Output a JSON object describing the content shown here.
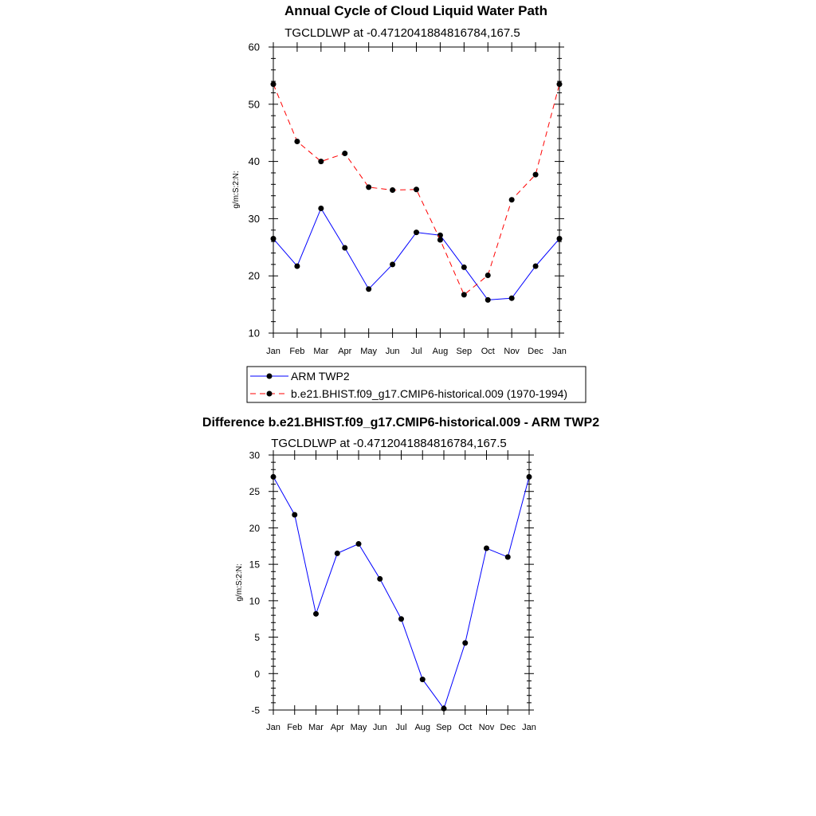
{
  "chart_data": [
    {
      "type": "line",
      "title": "Annual Cycle of Cloud Liquid Water Path",
      "subtitle": "TGCLDLWP at -0.4712041884816784,167.5",
      "xlabel": "",
      "ylabel": "g/m:S:2:N:",
      "ylim": [
        10,
        60
      ],
      "yticks": [
        "10",
        "20",
        "30",
        "40",
        "50",
        "60"
      ],
      "categories": [
        "Jan",
        "Feb",
        "Mar",
        "Apr",
        "May",
        "Jun",
        "Jul",
        "Aug",
        "Sep",
        "Oct",
        "Nov",
        "Dec",
        "Jan"
      ],
      "series": [
        {
          "name": "ARM TWP2",
          "color": "#0000ff",
          "dash": "solid",
          "values": [
            26.5,
            21.7,
            31.8,
            24.9,
            17.7,
            22.0,
            27.6,
            27.1,
            21.5,
            15.8,
            16.1,
            21.7,
            26.5
          ]
        },
        {
          "name": "b.e21.BHIST.f09_g17.CMIP6-historical.009 (1970-1994)",
          "color": "#ff0000",
          "dash": "dashed",
          "values": [
            53.5,
            43.5,
            40.0,
            41.4,
            35.5,
            35.0,
            35.1,
            26.3,
            16.7,
            20.1,
            33.3,
            37.7,
            53.5
          ]
        }
      ],
      "legend_position": "below"
    },
    {
      "type": "line",
      "title": "Difference b.e21.BHIST.f09_g17.CMIP6-historical.009 - ARM TWP2",
      "subtitle": "TGCLDLWP at -0.4712041884816784,167.5",
      "xlabel": "",
      "ylabel": "g/m:S:2:N:",
      "ylim": [
        -5,
        30
      ],
      "yticks": [
        "-5",
        "0",
        "5",
        "10",
        "15",
        "20",
        "25",
        "30"
      ],
      "categories": [
        "Jan",
        "Feb",
        "Mar",
        "Apr",
        "May",
        "Jun",
        "Jul",
        "Aug",
        "Sep",
        "Oct",
        "Nov",
        "Dec",
        "Jan"
      ],
      "series": [
        {
          "name": "Difference",
          "color": "#0000ff",
          "dash": "solid",
          "values": [
            27.0,
            21.8,
            8.2,
            16.5,
            17.8,
            13.0,
            7.5,
            -0.8,
            -4.8,
            4.2,
            17.2,
            16.0,
            27.0
          ]
        }
      ]
    }
  ]
}
